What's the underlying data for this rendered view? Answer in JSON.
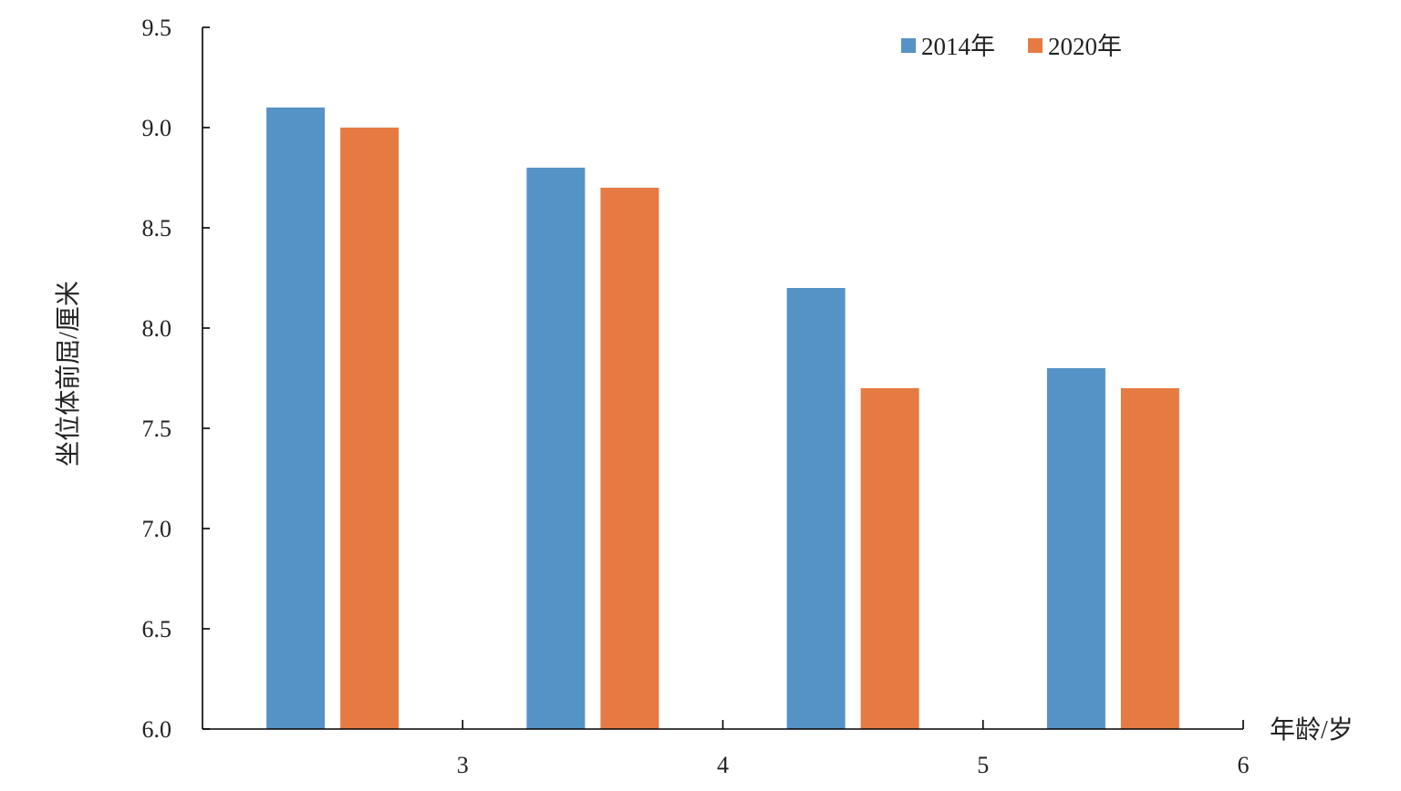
{
  "chart_data": {
    "type": "bar",
    "categories": [
      "3",
      "4",
      "5",
      "6"
    ],
    "x_tick_labels": [
      "3",
      "4",
      "5",
      "6"
    ],
    "series": [
      {
        "name": "2014年",
        "color": "#5592C6",
        "values": [
          9.1,
          8.8,
          8.2,
          7.8
        ]
      },
      {
        "name": "2020年",
        "color": "#E57B43",
        "values": [
          9.0,
          8.7,
          7.7,
          7.7
        ]
      }
    ],
    "xlabel": "年龄/岁",
    "ylabel": "坐位体前屈/厘米",
    "ylim": [
      6.0,
      9.5
    ],
    "y_ticks": [
      "6.0",
      "6.5",
      "7.0",
      "7.5",
      "8.0",
      "8.5",
      "9.0",
      "9.5"
    ],
    "grid": false,
    "legend_position": "top-right"
  }
}
